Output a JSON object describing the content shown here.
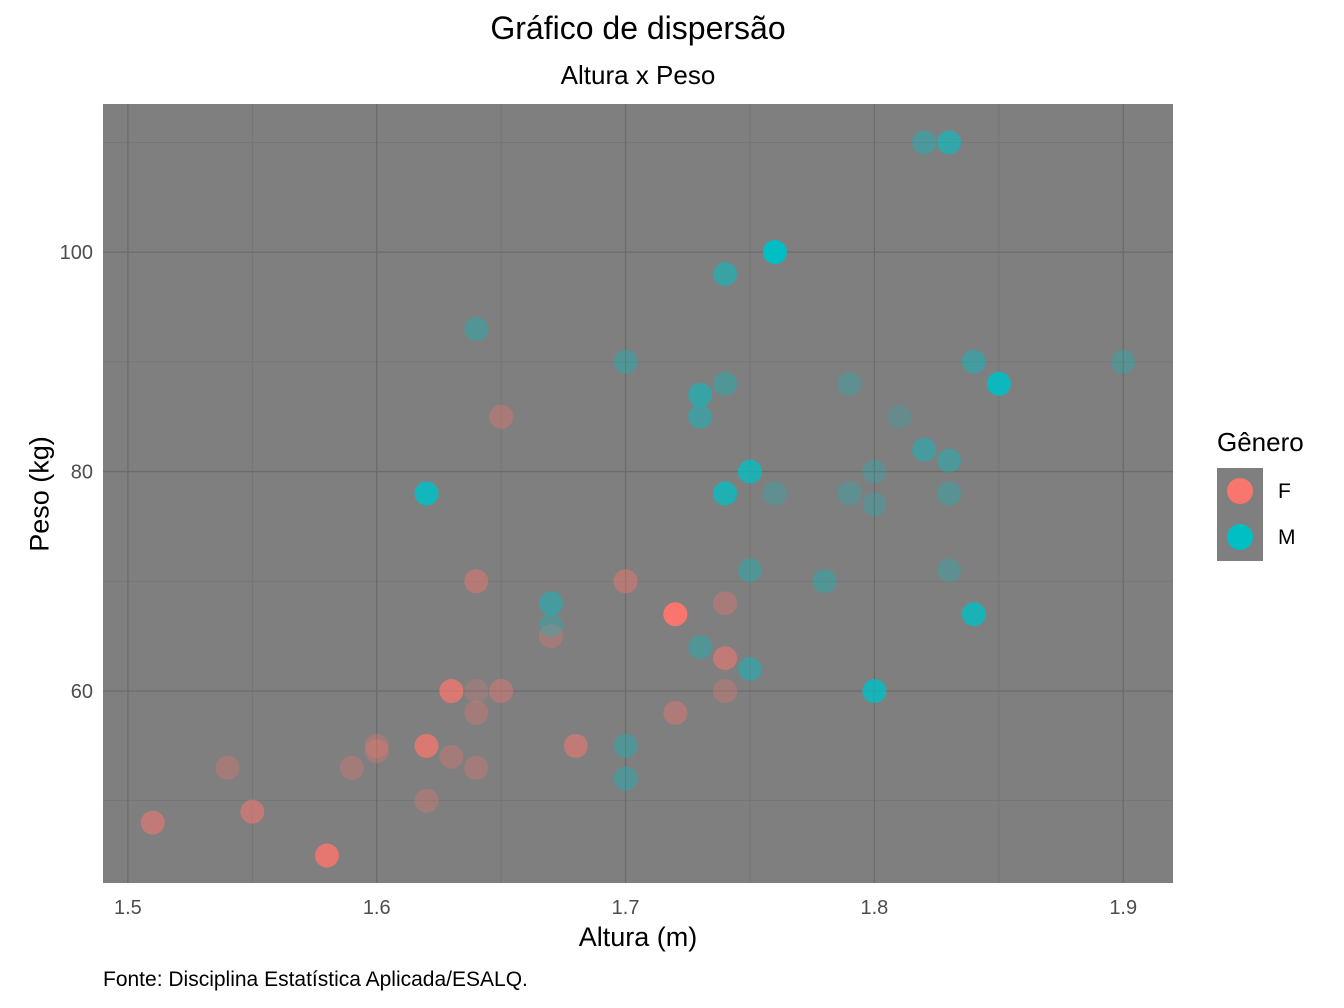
{
  "chart_data": {
    "type": "scatter",
    "title": "Gráfico de dispersão",
    "subtitle": "Altura x Peso",
    "xlabel": "Altura (m)",
    "ylabel": "Peso (kg)",
    "caption": "Fonte: Disciplina Estatística Aplicada/ESALQ.",
    "xlim": [
      1.49,
      1.92
    ],
    "ylim": [
      42.5,
      113.5
    ],
    "x_ticks": [
      1.5,
      1.6,
      1.7,
      1.8,
      1.9
    ],
    "y_ticks": [
      60,
      80,
      100
    ],
    "grid": true,
    "legend": {
      "title": "Gênero",
      "position": "right",
      "items": [
        {
          "label": "F",
          "color": "#F8766D"
        },
        {
          "label": "M",
          "color": "#00BFC4"
        }
      ]
    },
    "series": [
      {
        "name": "F",
        "color": "#F8766D",
        "points": [
          {
            "x": 1.51,
            "y": 48,
            "alpha": 0.55
          },
          {
            "x": 1.54,
            "y": 53,
            "alpha": 0.3
          },
          {
            "x": 1.55,
            "y": 49,
            "alpha": 0.55
          },
          {
            "x": 1.58,
            "y": 45,
            "alpha": 0.85
          },
          {
            "x": 1.59,
            "y": 53,
            "alpha": 0.3
          },
          {
            "x": 1.6,
            "y": 55,
            "alpha": 0.3
          },
          {
            "x": 1.6,
            "y": 54.5,
            "alpha": 0.3
          },
          {
            "x": 1.62,
            "y": 55,
            "alpha": 0.75
          },
          {
            "x": 1.62,
            "y": 50,
            "alpha": 0.3
          },
          {
            "x": 1.63,
            "y": 60,
            "alpha": 0.75
          },
          {
            "x": 1.63,
            "y": 54,
            "alpha": 0.3
          },
          {
            "x": 1.64,
            "y": 70,
            "alpha": 0.45
          },
          {
            "x": 1.64,
            "y": 60,
            "alpha": 0.2
          },
          {
            "x": 1.64,
            "y": 58,
            "alpha": 0.3
          },
          {
            "x": 1.64,
            "y": 53,
            "alpha": 0.3
          },
          {
            "x": 1.65,
            "y": 85,
            "alpha": 0.35
          },
          {
            "x": 1.65,
            "y": 60,
            "alpha": 0.4
          },
          {
            "x": 1.67,
            "y": 65,
            "alpha": 0.3
          },
          {
            "x": 1.68,
            "y": 55,
            "alpha": 0.55
          },
          {
            "x": 1.7,
            "y": 70,
            "alpha": 0.45
          },
          {
            "x": 1.72,
            "y": 67,
            "alpha": 1.0
          },
          {
            "x": 1.72,
            "y": 58,
            "alpha": 0.4
          },
          {
            "x": 1.74,
            "y": 68,
            "alpha": 0.35
          },
          {
            "x": 1.74,
            "y": 63,
            "alpha": 0.55
          },
          {
            "x": 1.74,
            "y": 60,
            "alpha": 0.3
          }
        ]
      },
      {
        "name": "M",
        "color": "#00BFC4",
        "points": [
          {
            "x": 1.62,
            "y": 78,
            "alpha": 0.85
          },
          {
            "x": 1.64,
            "y": 93,
            "alpha": 0.35
          },
          {
            "x": 1.67,
            "y": 68,
            "alpha": 0.45
          },
          {
            "x": 1.67,
            "y": 66,
            "alpha": 0.3
          },
          {
            "x": 1.7,
            "y": 90,
            "alpha": 0.35
          },
          {
            "x": 1.7,
            "y": 55,
            "alpha": 0.35
          },
          {
            "x": 1.7,
            "y": 52,
            "alpha": 0.35
          },
          {
            "x": 1.73,
            "y": 87,
            "alpha": 0.55
          },
          {
            "x": 1.73,
            "y": 85,
            "alpha": 0.45
          },
          {
            "x": 1.73,
            "y": 64,
            "alpha": 0.35
          },
          {
            "x": 1.74,
            "y": 98,
            "alpha": 0.55
          },
          {
            "x": 1.74,
            "y": 88,
            "alpha": 0.35
          },
          {
            "x": 1.74,
            "y": 78,
            "alpha": 0.75
          },
          {
            "x": 1.75,
            "y": 80,
            "alpha": 0.75
          },
          {
            "x": 1.75,
            "y": 71,
            "alpha": 0.35
          },
          {
            "x": 1.75,
            "y": 62,
            "alpha": 0.45
          },
          {
            "x": 1.76,
            "y": 100,
            "alpha": 1.0
          },
          {
            "x": 1.76,
            "y": 78,
            "alpha": 0.25
          },
          {
            "x": 1.78,
            "y": 70,
            "alpha": 0.35
          },
          {
            "x": 1.79,
            "y": 88,
            "alpha": 0.25
          },
          {
            "x": 1.79,
            "y": 78,
            "alpha": 0.25
          },
          {
            "x": 1.8,
            "y": 80,
            "alpha": 0.25
          },
          {
            "x": 1.8,
            "y": 77,
            "alpha": 0.25
          },
          {
            "x": 1.8,
            "y": 60,
            "alpha": 0.8
          },
          {
            "x": 1.81,
            "y": 85,
            "alpha": 0.2
          },
          {
            "x": 1.82,
            "y": 110,
            "alpha": 0.4
          },
          {
            "x": 1.82,
            "y": 82,
            "alpha": 0.45
          },
          {
            "x": 1.83,
            "y": 110,
            "alpha": 0.6
          },
          {
            "x": 1.83,
            "y": 81,
            "alpha": 0.4
          },
          {
            "x": 1.83,
            "y": 78,
            "alpha": 0.3
          },
          {
            "x": 1.83,
            "y": 71,
            "alpha": 0.25
          },
          {
            "x": 1.84,
            "y": 90,
            "alpha": 0.45
          },
          {
            "x": 1.84,
            "y": 67,
            "alpha": 0.8
          },
          {
            "x": 1.85,
            "y": 88,
            "alpha": 0.9
          },
          {
            "x": 1.9,
            "y": 90,
            "alpha": 0.3
          }
        ]
      }
    ]
  }
}
